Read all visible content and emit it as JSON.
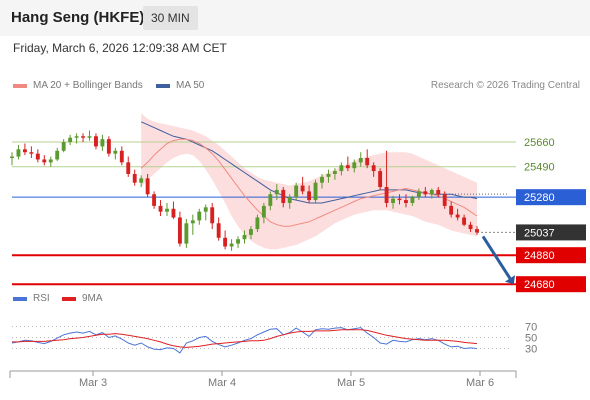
{
  "header": {
    "title": "Hang Seng (HKFE)",
    "interval": "30 MIN"
  },
  "timestamp": "Friday, March 6, 2026 12:09:38 AM CET",
  "legend": {
    "ma20_label": "MA 20 + Bollinger Bands",
    "ma50_label": "MA 50",
    "research": "Research © 2026 Trading Central",
    "rsi_label": "RSI",
    "ma9_label": "9MA"
  },
  "colors": {
    "bull": "#5b9a2e",
    "bear": "#d72020",
    "ma20": "#f08a80",
    "ma50": "#3f5f9f",
    "bollinger_fill": "#fcdede",
    "resistance": "#b4d190",
    "pivot": "#2b5fd6",
    "support": "#e00000",
    "current": "#333333",
    "rsi": "#4a74d8",
    "ma9": "#e02020"
  },
  "chart_data": [
    {
      "type": "candlestick",
      "x_labels": [
        "Mar 3",
        "Mar 4",
        "Mar 5",
        "Mar 6"
      ],
      "ylim": [
        24640,
        25950
      ],
      "levels": {
        "resistance": [
          25660,
          25490
        ],
        "pivot": 25280,
        "current": 25037,
        "support": [
          24880,
          24680
        ]
      },
      "candles": [
        [
          25550,
          25590,
          25500,
          25560
        ],
        [
          25560,
          25640,
          25540,
          25610
        ],
        [
          25610,
          25650,
          25570,
          25590
        ],
        [
          25590,
          25630,
          25550,
          25580
        ],
        [
          25580,
          25610,
          25520,
          25540
        ],
        [
          25540,
          25570,
          25500,
          25520
        ],
        [
          25520,
          25560,
          25490,
          25540
        ],
        [
          25540,
          25620,
          25530,
          25600
        ],
        [
          25600,
          25680,
          25590,
          25660
        ],
        [
          25660,
          25710,
          25640,
          25690
        ],
        [
          25690,
          25720,
          25650,
          25700
        ],
        [
          25700,
          25720,
          25660,
          25690
        ],
        [
          25690,
          25740,
          25670,
          25700
        ],
        [
          25700,
          25720,
          25610,
          25630
        ],
        [
          25630,
          25710,
          25600,
          25680
        ],
        [
          25680,
          25700,
          25560,
          25580
        ],
        [
          25580,
          25620,
          25540,
          25600
        ],
        [
          25600,
          25630,
          25500,
          25520
        ],
        [
          25520,
          25560,
          25420,
          25440
        ],
        [
          25440,
          25470,
          25360,
          25380
        ],
        [
          25380,
          25430,
          25350,
          25410
        ],
        [
          25410,
          25440,
          25280,
          25300
        ],
        [
          25300,
          25320,
          25200,
          25220
        ],
        [
          25220,
          25260,
          25150,
          25180
        ],
        [
          25180,
          25240,
          25150,
          25200
        ],
        [
          25200,
          25250,
          25130,
          25140
        ],
        [
          25140,
          25180,
          24940,
          24960
        ],
        [
          24960,
          25130,
          24930,
          25100
        ],
        [
          25100,
          25160,
          25020,
          25120
        ],
        [
          25120,
          25200,
          25090,
          25180
        ],
        [
          25180,
          25230,
          25120,
          25210
        ],
        [
          25210,
          25240,
          25060,
          25100
        ],
        [
          25100,
          25140,
          24980,
          25000
        ],
        [
          25000,
          25050,
          24920,
          24940
        ],
        [
          24940,
          24990,
          24910,
          24960
        ],
        [
          24960,
          25010,
          24930,
          24990
        ],
        [
          24990,
          25050,
          24960,
          25020
        ],
        [
          25020,
          25080,
          24990,
          25060
        ],
        [
          25060,
          25160,
          25040,
          25140
        ],
        [
          25140,
          25240,
          25100,
          25220
        ],
        [
          25220,
          25320,
          25190,
          25300
        ],
        [
          25300,
          25370,
          25260,
          25330
        ],
        [
          25330,
          25350,
          25210,
          25240
        ],
        [
          25240,
          25300,
          25200,
          25280
        ],
        [
          25280,
          25380,
          25260,
          25360
        ],
        [
          25360,
          25420,
          25300,
          25320
        ],
        [
          25320,
          25360,
          25240,
          25260
        ],
        [
          25260,
          25400,
          25240,
          25380
        ],
        [
          25380,
          25440,
          25340,
          25420
        ],
        [
          25420,
          25470,
          25380,
          25440
        ],
        [
          25440,
          25480,
          25400,
          25460
        ],
        [
          25460,
          25520,
          25430,
          25500
        ],
        [
          25500,
          25560,
          25460,
          25480
        ],
        [
          25480,
          25540,
          25450,
          25520
        ],
        [
          25520,
          25590,
          25490,
          25550
        ],
        [
          25550,
          25610,
          25480,
          25500
        ],
        [
          25500,
          25520,
          25420,
          25460
        ],
        [
          25460,
          25480,
          25330,
          25350
        ],
        [
          25350,
          25600,
          25210,
          25240
        ],
        [
          25240,
          25290,
          25200,
          25270
        ],
        [
          25270,
          25300,
          25230,
          25260
        ],
        [
          25260,
          25300,
          25210,
          25240
        ],
        [
          25240,
          25290,
          25220,
          25280
        ],
        [
          25280,
          25340,
          25260,
          25320
        ],
        [
          25320,
          25350,
          25280,
          25300
        ],
        [
          25300,
          25340,
          25270,
          25330
        ],
        [
          25330,
          25350,
          25280,
          25300
        ],
        [
          25300,
          25320,
          25200,
          25220
        ],
        [
          25220,
          25250,
          25140,
          25160
        ],
        [
          25160,
          25200,
          25120,
          25140
        ],
        [
          25140,
          25160,
          25080,
          25090
        ],
        [
          25090,
          25110,
          25040,
          25060
        ],
        [
          25060,
          25080,
          25020,
          25037
        ]
      ],
      "ma20": [
        25480,
        25520,
        25570,
        25610,
        25650,
        25670,
        25680,
        25680,
        25670,
        25650,
        25620,
        25580,
        25530,
        25470,
        25410,
        25350,
        25290,
        25240,
        25190,
        25150,
        25110,
        25090,
        25080,
        25080,
        25090,
        25100,
        25110,
        25130,
        25150,
        25170,
        25190,
        25210,
        25230,
        25250,
        25270,
        25280,
        25290,
        25300,
        25310,
        25320,
        25330,
        25340,
        25330,
        25320,
        25310,
        25300,
        25290,
        25270,
        25250,
        25230,
        25210,
        25180,
        25150
      ],
      "ma50": [
        25800,
        25780,
        25760,
        25740,
        25720,
        25700,
        25690,
        25680,
        25660,
        25640,
        25620,
        25600,
        25570,
        25540,
        25510,
        25480,
        25450,
        25420,
        25390,
        25360,
        25330,
        25310,
        25290,
        25270,
        25260,
        25250,
        25240,
        25240,
        25240,
        25250,
        25260,
        25270,
        25280,
        25290,
        25300,
        25310,
        25320,
        25330,
        25330,
        25330,
        25330,
        25330,
        25320,
        25310,
        25310,
        25300,
        25300,
        25300,
        25300,
        25290,
        25280,
        25280,
        25270
      ],
      "bb_upper": [
        25860,
        25820,
        25800,
        25790,
        25780,
        25770,
        25760,
        25750,
        25740,
        25720,
        25700,
        25670,
        25640,
        25600,
        25560,
        25520,
        25480,
        25450,
        25420,
        25400,
        25390,
        25380,
        25370,
        25360,
        25370,
        25380,
        25390,
        25410,
        25430,
        25450,
        25470,
        25490,
        25510,
        25530,
        25550,
        25560,
        25570,
        25580,
        25590,
        25590,
        25590,
        25590,
        25580,
        25560,
        25540,
        25520,
        25500,
        25480,
        25460,
        25440,
        25420,
        25400,
        25380
      ],
      "bb_lower": [
        25350,
        25400,
        25440,
        25480,
        25520,
        25550,
        25570,
        25580,
        25570,
        25530,
        25470,
        25400,
        25320,
        25240,
        25150,
        25080,
        25020,
        24980,
        24950,
        24930,
        24920,
        24920,
        24930,
        24940,
        24950,
        24970,
        24990,
        25010,
        25040,
        25070,
        25100,
        25120,
        25140,
        25160,
        25170,
        25180,
        25190,
        25190,
        25190,
        25180,
        25170,
        25160,
        25150,
        25130,
        25110,
        25100,
        25090,
        25070,
        25050,
        25040,
        25030,
        25020,
        25010
      ]
    },
    {
      "type": "line",
      "ylabel_ticks": [
        70,
        50,
        30
      ],
      "ylim": [
        0,
        100
      ],
      "series": [
        {
          "name": "RSI",
          "values": [
            40,
            42,
            45,
            44,
            41,
            39,
            43,
            49,
            55,
            58,
            60,
            58,
            61,
            55,
            59,
            50,
            53,
            47,
            40,
            36,
            40,
            33,
            29,
            28,
            31,
            30,
            22,
            40,
            44,
            50,
            52,
            43,
            37,
            33,
            36,
            40,
            45,
            48,
            55,
            60,
            65,
            66,
            55,
            59,
            67,
            60,
            52,
            64,
            66,
            65,
            67,
            68,
            64,
            66,
            68,
            58,
            50,
            40,
            38,
            45,
            43,
            42,
            46,
            48,
            46,
            48,
            45,
            38,
            33,
            34,
            30,
            31,
            30
          ]
        },
        {
          "name": "9MA",
          "values": [
            42,
            42,
            43,
            43,
            43,
            43,
            44,
            45,
            46,
            48,
            49,
            50,
            52,
            54,
            56,
            56,
            57,
            56,
            54,
            52,
            50,
            48,
            45,
            42,
            38,
            35,
            33,
            32,
            33,
            34,
            36,
            38,
            39,
            40,
            41,
            42,
            43,
            44,
            44,
            45,
            48,
            52,
            55,
            58,
            60,
            61,
            61,
            62,
            62,
            62,
            63,
            64,
            64,
            64,
            64,
            63,
            60,
            57,
            54,
            52,
            50,
            48,
            47,
            46,
            45,
            45,
            45,
            45,
            44,
            43,
            41,
            40,
            39
          ]
        }
      ]
    }
  ]
}
